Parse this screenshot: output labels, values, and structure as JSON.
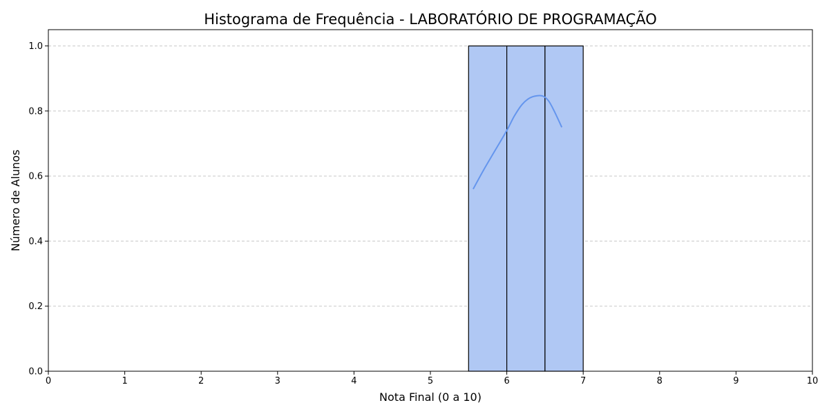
{
  "chart_data": {
    "type": "bar",
    "subtype": "histogram",
    "title": "Histograma de Frequência - LABORATÓRIO DE PROGRAMAÇÃO",
    "xlabel": "Nota Final (0 a 10)",
    "ylabel": "Número de Alunos",
    "xlim": [
      0,
      10
    ],
    "ylim": [
      0,
      1.05
    ],
    "xticks": [
      "0",
      "1",
      "2",
      "3",
      "4",
      "5",
      "6",
      "7",
      "8",
      "9",
      "10"
    ],
    "yticks": [
      "0.0",
      "0.2",
      "0.4",
      "0.6",
      "0.8",
      "1.0"
    ],
    "bins": [
      {
        "x0": 5.5,
        "x1": 6.0,
        "count": 1
      },
      {
        "x0": 6.0,
        "x1": 6.5,
        "count": 1
      },
      {
        "x0": 6.5,
        "x1": 7.0,
        "count": 1
      }
    ],
    "kde": {
      "x": [
        5.56,
        5.7,
        5.85,
        6.0,
        6.1,
        6.2,
        6.3,
        6.4,
        6.48,
        6.55,
        6.62,
        6.72
      ],
      "y": [
        0.56,
        0.62,
        0.68,
        0.74,
        0.785,
        0.82,
        0.84,
        0.847,
        0.845,
        0.83,
        0.8,
        0.75
      ]
    },
    "grid": {
      "y": true,
      "x": false,
      "style": "dashed"
    },
    "colors": {
      "bar_fill": "#b0c8f4",
      "bar_edge": "#000000",
      "kde_line": "#6495ed",
      "grid": "#c8c8c8"
    }
  }
}
